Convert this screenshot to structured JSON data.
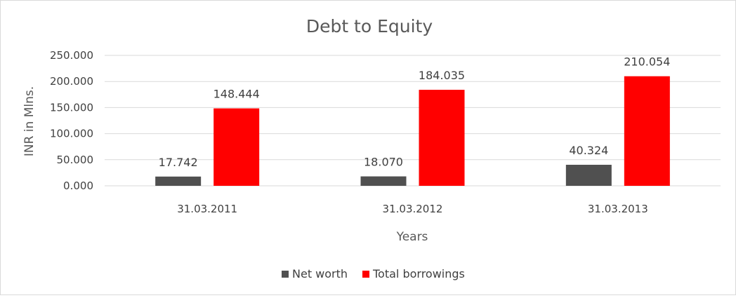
{
  "chart_data": {
    "type": "bar",
    "title": "Debt to Equity",
    "xlabel": "Years",
    "ylabel": "INR in Mlns.",
    "categories": [
      "31.03.2011",
      "31.03.2012",
      "31.03.2013"
    ],
    "series": [
      {
        "name": "Net worth",
        "values": [
          17.742,
          18.07,
          40.324
        ],
        "color": "#505050"
      },
      {
        "name": "Total borrowings",
        "values": [
          148.444,
          184.035,
          210.054
        ],
        "color": "#ff0000"
      }
    ],
    "value_labels": [
      [
        "17.742",
        "18.070",
        "40.324"
      ],
      [
        "148.444",
        "184.035",
        "210.054"
      ]
    ],
    "ylim": [
      0,
      250
    ],
    "yticks": [
      0,
      50,
      100,
      150,
      200,
      250
    ],
    "ytick_labels": [
      "0.000",
      "50.000",
      "100.000",
      "150.000",
      "200.000",
      "250.000"
    ],
    "grid": true,
    "gridline_color": "#d9d9d9",
    "legend_position": "bottom"
  }
}
